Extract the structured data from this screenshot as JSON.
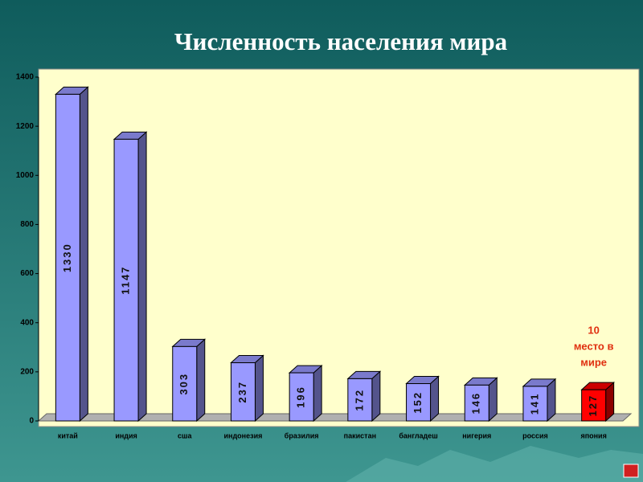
{
  "chart_data": {
    "type": "bar",
    "title": "Численность населения мира",
    "categories": [
      "китай",
      "индия",
      "сша",
      "индонезия",
      "бразилия",
      "пакистан",
      "бангладеш",
      "нигерия",
      "россия",
      "япония"
    ],
    "values": [
      1330,
      1147,
      303,
      237,
      196,
      172,
      152,
      146,
      141,
      127
    ],
    "colors": [
      "#9999ff",
      "#9999ff",
      "#9999ff",
      "#9999ff",
      "#9999ff",
      "#9999ff",
      "#9999ff",
      "#9999ff",
      "#9999ff",
      "#ff0000"
    ],
    "ylim": [
      0,
      1400
    ],
    "yticks": [
      0,
      200,
      400,
      600,
      800,
      1000,
      1200,
      1400
    ],
    "annotation": [
      "10",
      "место в",
      "мире"
    ]
  }
}
